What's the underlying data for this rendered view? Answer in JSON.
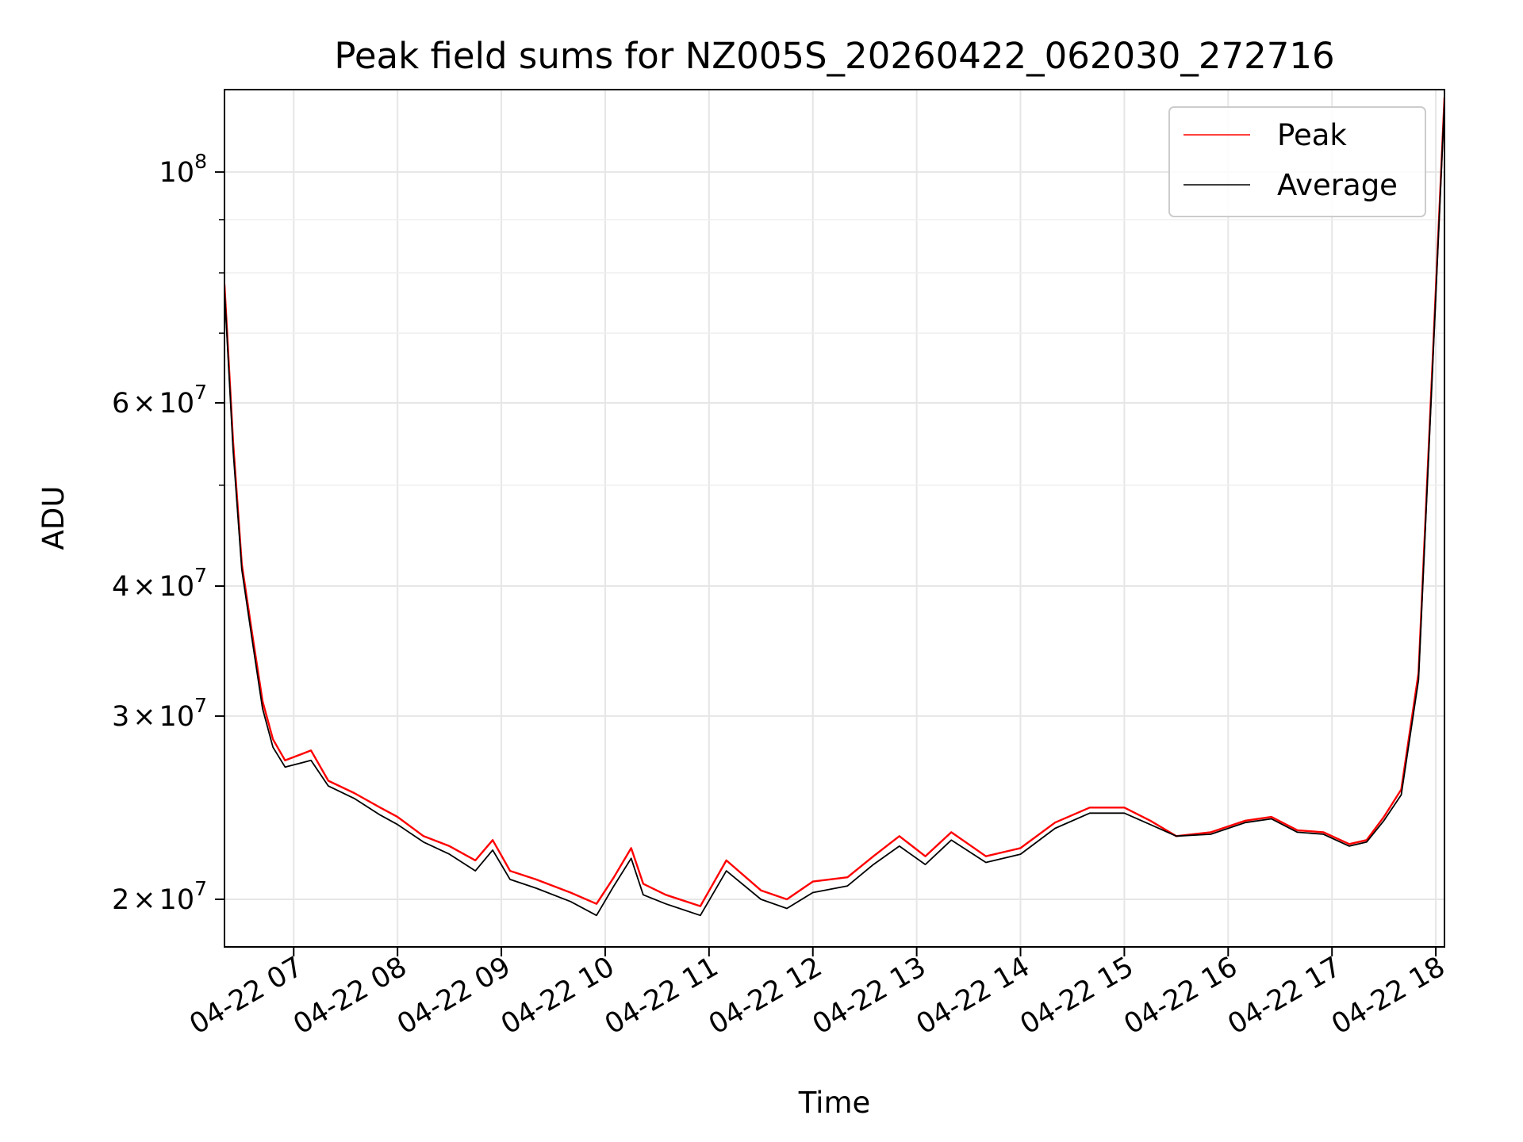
{
  "chart_data": {
    "type": "line",
    "title": "Peak field sums for NZ005S_20260422_062030_272716",
    "xlabel": "Time",
    "ylabel": "ADU",
    "yscale": "log",
    "ylim": [
      18000000,
      120000000
    ],
    "xlim": [
      "2026-04-22 06:20",
      "2026-04-22 18:05"
    ],
    "grid": true,
    "legend_position": "top-right",
    "x_ticks": [
      {
        "value": "2026-04-22 07:00",
        "label": "04-22 07"
      },
      {
        "value": "2026-04-22 08:00",
        "label": "04-22 08"
      },
      {
        "value": "2026-04-22 09:00",
        "label": "04-22 09"
      },
      {
        "value": "2026-04-22 10:00",
        "label": "04-22 10"
      },
      {
        "value": "2026-04-22 11:00",
        "label": "04-22 11"
      },
      {
        "value": "2026-04-22 12:00",
        "label": "04-22 12"
      },
      {
        "value": "2026-04-22 13:00",
        "label": "04-22 13"
      },
      {
        "value": "2026-04-22 14:00",
        "label": "04-22 14"
      },
      {
        "value": "2026-04-22 15:00",
        "label": "04-22 15"
      },
      {
        "value": "2026-04-22 16:00",
        "label": "04-22 16"
      },
      {
        "value": "2026-04-22 17:00",
        "label": "04-22 17"
      },
      {
        "value": "2026-04-22 18:00",
        "label": "04-22 18"
      }
    ],
    "y_ticks": [
      {
        "value": 20000000,
        "mantissa": "2",
        "times": "×",
        "base": "10",
        "exp": "7"
      },
      {
        "value": 30000000,
        "mantissa": "3",
        "times": "×",
        "base": "10",
        "exp": "7"
      },
      {
        "value": 40000000,
        "mantissa": "4",
        "times": "×",
        "base": "10",
        "exp": "7"
      },
      {
        "value": 60000000,
        "mantissa": "6",
        "times": "×",
        "base": "10",
        "exp": "7"
      },
      {
        "value": 100000000,
        "mantissa": "",
        "times": "",
        "base": "10",
        "exp": "8"
      }
    ],
    "y_minor_ticks": [
      50000000,
      70000000,
      80000000,
      90000000
    ],
    "series": [
      {
        "name": "Peak",
        "color": "#ff0000",
        "x": [
          "2026-04-22 06:20",
          "2026-04-22 06:25",
          "2026-04-22 06:30",
          "2026-04-22 06:36",
          "2026-04-22 06:42",
          "2026-04-22 06:48",
          "2026-04-22 06:55",
          "2026-04-22 07:10",
          "2026-04-22 07:20",
          "2026-04-22 07:35",
          "2026-04-22 07:50",
          "2026-04-22 08:00",
          "2026-04-22 08:15",
          "2026-04-22 08:30",
          "2026-04-22 08:45",
          "2026-04-22 08:55",
          "2026-04-22 09:05",
          "2026-04-22 09:20",
          "2026-04-22 09:40",
          "2026-04-22 09:55",
          "2026-04-22 10:05",
          "2026-04-22 10:15",
          "2026-04-22 10:22",
          "2026-04-22 10:35",
          "2026-04-22 10:55",
          "2026-04-22 11:10",
          "2026-04-22 11:30",
          "2026-04-22 11:45",
          "2026-04-22 12:00",
          "2026-04-22 12:20",
          "2026-04-22 12:35",
          "2026-04-22 12:50",
          "2026-04-22 13:05",
          "2026-04-22 13:20",
          "2026-04-22 13:40",
          "2026-04-22 14:00",
          "2026-04-22 14:20",
          "2026-04-22 14:40",
          "2026-04-22 15:00",
          "2026-04-22 15:15",
          "2026-04-22 15:30",
          "2026-04-22 15:50",
          "2026-04-22 16:10",
          "2026-04-22 16:25",
          "2026-04-22 16:40",
          "2026-04-22 16:55",
          "2026-04-22 17:10",
          "2026-04-22 17:20",
          "2026-04-22 17:30",
          "2026-04-22 17:40",
          "2026-04-22 17:50",
          "2026-04-22 17:58",
          "2026-04-22 18:05"
        ],
        "y": [
          78000000,
          55000000,
          42000000,
          36000000,
          31000000,
          28500000,
          27200000,
          27800000,
          26000000,
          25300000,
          24500000,
          24000000,
          23000000,
          22500000,
          21800000,
          22800000,
          21300000,
          20900000,
          20300000,
          19800000,
          21000000,
          22400000,
          20700000,
          20200000,
          19700000,
          21800000,
          20400000,
          20000000,
          20800000,
          21000000,
          22000000,
          23000000,
          22000000,
          23200000,
          22000000,
          22400000,
          23700000,
          24500000,
          24500000,
          23800000,
          23000000,
          23200000,
          23800000,
          24000000,
          23300000,
          23200000,
          22600000,
          22800000,
          24000000,
          25500000,
          33000000,
          65000000,
          118000000
        ]
      },
      {
        "name": "Average",
        "color": "#000000",
        "x": [
          "2026-04-22 06:20",
          "2026-04-22 06:25",
          "2026-04-22 06:30",
          "2026-04-22 06:36",
          "2026-04-22 06:42",
          "2026-04-22 06:48",
          "2026-04-22 06:55",
          "2026-04-22 07:10",
          "2026-04-22 07:20",
          "2026-04-22 07:35",
          "2026-04-22 07:50",
          "2026-04-22 08:00",
          "2026-04-22 08:15",
          "2026-04-22 08:30",
          "2026-04-22 08:45",
          "2026-04-22 08:55",
          "2026-04-22 09:05",
          "2026-04-22 09:20",
          "2026-04-22 09:40",
          "2026-04-22 09:55",
          "2026-04-22 10:05",
          "2026-04-22 10:15",
          "2026-04-22 10:22",
          "2026-04-22 10:35",
          "2026-04-22 10:55",
          "2026-04-22 11:10",
          "2026-04-22 11:30",
          "2026-04-22 11:45",
          "2026-04-22 12:00",
          "2026-04-22 12:20",
          "2026-04-22 12:35",
          "2026-04-22 12:50",
          "2026-04-22 13:05",
          "2026-04-22 13:20",
          "2026-04-22 13:40",
          "2026-04-22 14:00",
          "2026-04-22 14:20",
          "2026-04-22 14:40",
          "2026-04-22 15:00",
          "2026-04-22 15:15",
          "2026-04-22 15:30",
          "2026-04-22 15:50",
          "2026-04-22 16:10",
          "2026-04-22 16:25",
          "2026-04-22 16:40",
          "2026-04-22 16:55",
          "2026-04-22 17:10",
          "2026-04-22 17:20",
          "2026-04-22 17:30",
          "2026-04-22 17:40",
          "2026-04-22 17:50",
          "2026-04-22 17:58",
          "2026-04-22 18:05"
        ],
        "y": [
          77000000,
          54000000,
          41500000,
          35500000,
          30500000,
          28000000,
          26800000,
          27200000,
          25700000,
          25000000,
          24100000,
          23600000,
          22700000,
          22100000,
          21300000,
          22300000,
          20900000,
          20500000,
          19900000,
          19300000,
          20600000,
          21900000,
          20200000,
          19800000,
          19300000,
          21300000,
          20000000,
          19600000,
          20300000,
          20600000,
          21600000,
          22500000,
          21600000,
          22800000,
          21700000,
          22100000,
          23400000,
          24200000,
          24200000,
          23600000,
          23000000,
          23100000,
          23700000,
          23900000,
          23200000,
          23100000,
          22500000,
          22700000,
          23800000,
          25200000,
          32500000,
          64000000,
          117000000
        ]
      }
    ]
  }
}
